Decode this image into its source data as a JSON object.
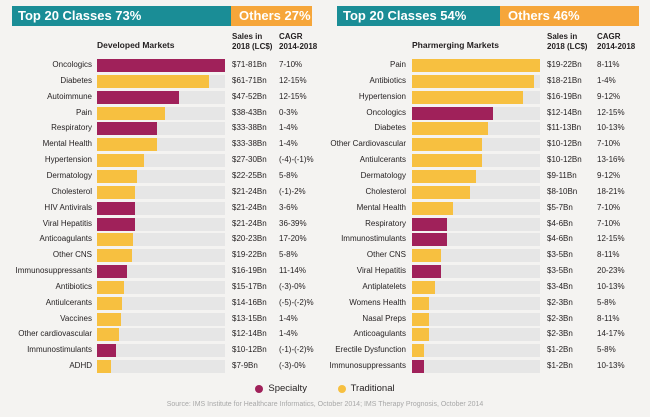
{
  "colors": {
    "teal": "#1a8d96",
    "orange": "#f6a63a",
    "specialty": "#a0215a",
    "traditional": "#f7c040",
    "track": "#e6e6e6"
  },
  "legend": {
    "specialty": "Specialty",
    "traditional": "Traditional"
  },
  "source": "Source: IMS Institute for Healthcare Informatics, October 2014; IMS Therapy Prognosis, October 2014",
  "chart_data": [
    {
      "type": "bar",
      "orientation": "horizontal",
      "title": "Developed Markets",
      "banner": {
        "top": "Top 20 Classes 73%",
        "others": "Others 27%",
        "top_share": 73,
        "others_share": 27
      },
      "col_sales": "Sales in 2018 (LC$)",
      "col_cagr": "CAGR 2014-2018",
      "categories": [
        "Oncologics",
        "Diabetes",
        "Autoimmune",
        "Pain",
        "Respiratory",
        "Mental Health",
        "Hypertension",
        "Dermatology",
        "Cholesterol",
        "HIV Antivirals",
        "Viral Hepatitis",
        "Anticoagulants",
        "Other CNS",
        "Immunosuppressants",
        "Antibiotics",
        "Antiulcerants",
        "Vaccines",
        "Other cardiovascular",
        "Immunostimulants",
        "ADHD"
      ],
      "values": [
        81,
        71,
        52,
        43,
        38,
        38,
        30,
        25,
        24,
        24,
        24,
        23,
        22,
        19,
        17,
        16,
        15,
        14,
        12,
        9
      ],
      "types": [
        "specialty",
        "traditional",
        "specialty",
        "traditional",
        "specialty",
        "traditional",
        "traditional",
        "traditional",
        "traditional",
        "specialty",
        "specialty",
        "traditional",
        "traditional",
        "specialty",
        "traditional",
        "traditional",
        "traditional",
        "traditional",
        "specialty",
        "traditional"
      ],
      "sales": [
        "$71-81Bn",
        "$61-71Bn",
        "$47-52Bn",
        "$38-43Bn",
        "$33-38Bn",
        "$33-38Bn",
        "$27-30Bn",
        "$22-25Bn",
        "$21-24Bn",
        "$21-24Bn",
        "$21-24Bn",
        "$20-23Bn",
        "$19-22Bn",
        "$16-19Bn",
        "$15-17Bn",
        "$14-16Bn",
        "$13-15Bn",
        "$12-14Bn",
        "$10-12Bn",
        "$7-9Bn"
      ],
      "cagr": [
        "7-10%",
        "12-15%",
        "12-15%",
        "0-3%",
        "1-4%",
        "1-4%",
        "(-4)-(-1)%",
        "5-8%",
        "(-1)-2%",
        "3-6%",
        "36-39%",
        "17-20%",
        "5-8%",
        "11-14%",
        "(-3)-0%",
        "(-5)-(-2)%",
        "1-4%",
        "1-4%",
        "(-1)-(-2)%",
        "(-3)-0%"
      ]
    },
    {
      "type": "bar",
      "orientation": "horizontal",
      "title": "Pharmerging Markets",
      "banner": {
        "top": "Top 20 Classes 54%",
        "others": "Others 46%",
        "top_share": 54,
        "others_share": 46
      },
      "col_sales": "Sales in 2018 (LC$)",
      "col_cagr": "CAGR 2014-2018",
      "categories": [
        "Pain",
        "Antibiotics",
        "Hypertension",
        "Oncologics",
        "Diabetes",
        "Other Cardiovascular",
        "Antiulcerants",
        "Dermatology",
        "Cholesterol",
        "Mental Health",
        "Respiratory",
        "Immunostimulants",
        "Other CNS",
        "Viral Hepatitis",
        "Antiplatelets",
        "Womens Health",
        "Nasal Preps",
        "Anticoagulants",
        "Erectile Dysfunction",
        "Immunosuppressants"
      ],
      "values": [
        22,
        21,
        19,
        14,
        13,
        12,
        12,
        11,
        10,
        7,
        6,
        6,
        5,
        5,
        4,
        3,
        3,
        3,
        2,
        2
      ],
      "types": [
        "traditional",
        "traditional",
        "traditional",
        "specialty",
        "traditional",
        "traditional",
        "traditional",
        "traditional",
        "traditional",
        "traditional",
        "specialty",
        "specialty",
        "traditional",
        "specialty",
        "traditional",
        "traditional",
        "traditional",
        "traditional",
        "traditional",
        "specialty"
      ],
      "sales": [
        "$19-22Bn",
        "$18-21Bn",
        "$16-19Bn",
        "$12-14Bn",
        "$11-13Bn",
        "$10-12Bn",
        "$10-12Bn",
        "$9-11Bn",
        "$8-10Bn",
        "$5-7Bn",
        "$4-6Bn",
        "$4-6Bn",
        "$3-5Bn",
        "$3-5Bn",
        "$3-4Bn",
        "$2-3Bn",
        "$2-3Bn",
        "$2-3Bn",
        "$1-2Bn",
        "$1-2Bn"
      ],
      "cagr": [
        "8-11%",
        "1-4%",
        "9-12%",
        "12-15%",
        "10-13%",
        "7-10%",
        "13-16%",
        "9-12%",
        "18-21%",
        "7-10%",
        "7-10%",
        "12-15%",
        "8-11%",
        "20-23%",
        "10-13%",
        "5-8%",
        "8-11%",
        "14-17%",
        "5-8%",
        "10-13%"
      ]
    }
  ]
}
